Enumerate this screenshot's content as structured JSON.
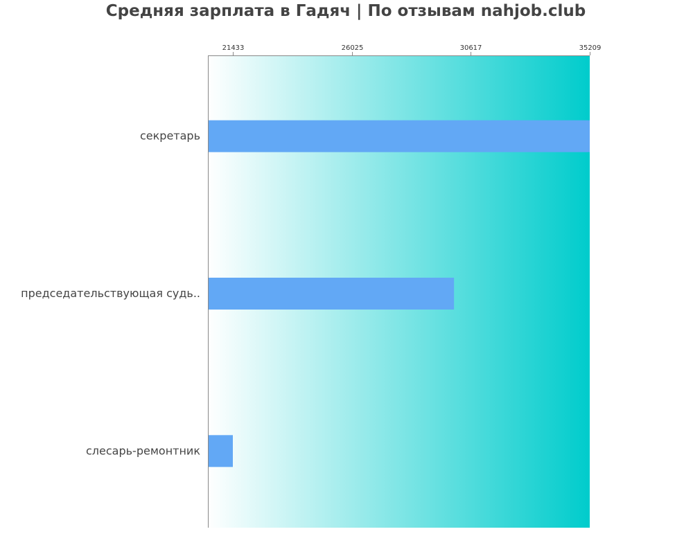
{
  "chart_data": {
    "type": "bar",
    "orientation": "horizontal",
    "title": "Средняя зарплата в Гадяч | По отзывам nahjob.club",
    "categories": [
      "секретарь",
      "председательствующая судь..",
      "слесарь-ремонтник"
    ],
    "values": [
      35209,
      29970,
      21433
    ],
    "xticks": [
      21433,
      26025,
      30617,
      35209
    ],
    "xlim": [
      20470,
      35209
    ],
    "xaxis_position": "top",
    "grid": false,
    "colors": {
      "bar": "#62a8f5",
      "background_gradient_start": "#ffffff",
      "background_gradient_end": "#00cccc",
      "axis": "#888888"
    }
  }
}
